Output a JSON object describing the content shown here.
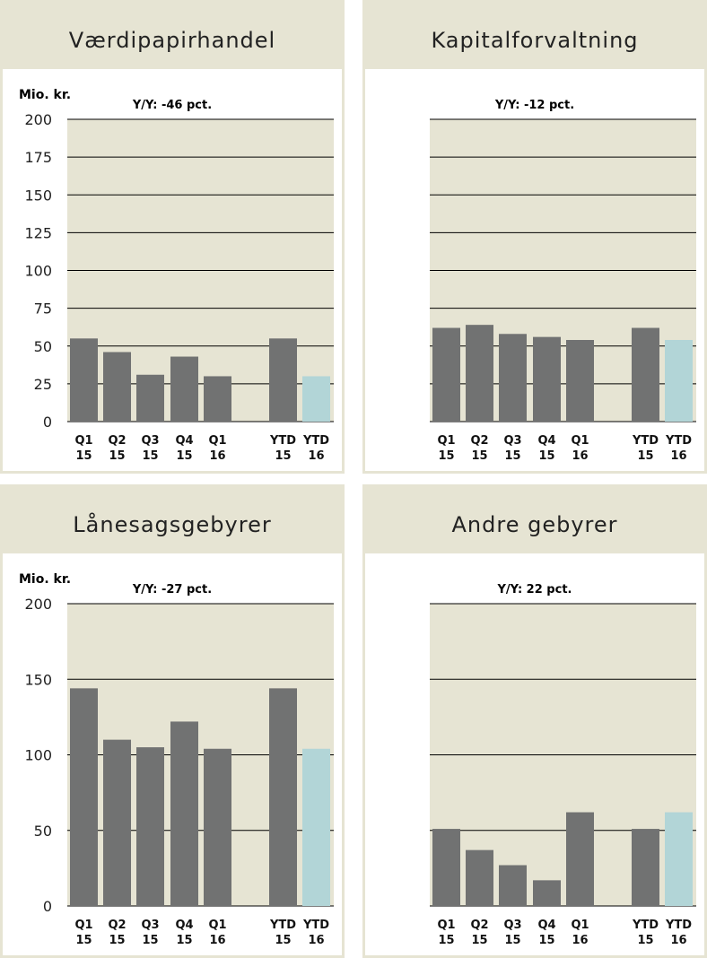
{
  "colors": {
    "plot_bg": "#e6e4d3",
    "bar": "#717272",
    "bar_ytd_current": "#b2d5d7",
    "gridline": "#000000",
    "header_bg": "#e6e4d3"
  },
  "chart_data": [
    {
      "type": "bar",
      "title": "Værdipapirhandel",
      "unit": "Mio. kr.",
      "yoy": "Y/Y: -46 pct.",
      "categories": [
        [
          "Q1",
          "15"
        ],
        [
          "Q2",
          "15"
        ],
        [
          "Q3",
          "15"
        ],
        [
          "Q4",
          "15"
        ],
        [
          "Q1",
          "16"
        ],
        [
          "YTD",
          "15"
        ],
        [
          "YTD",
          "16"
        ]
      ],
      "values": [
        55,
        46,
        31,
        43,
        30,
        55,
        30
      ],
      "ylim": [
        0,
        200
      ],
      "yticks": [
        0,
        25,
        50,
        75,
        100,
        125,
        150,
        175,
        200
      ],
      "show_y_tick_labels": true,
      "grid": true
    },
    {
      "type": "bar",
      "title": "Kapitalforvaltning",
      "unit": "",
      "yoy": "Y/Y: -12 pct.",
      "categories": [
        [
          "Q1",
          "15"
        ],
        [
          "Q2",
          "15"
        ],
        [
          "Q3",
          "15"
        ],
        [
          "Q4",
          "15"
        ],
        [
          "Q1",
          "16"
        ],
        [
          "YTD",
          "15"
        ],
        [
          "YTD",
          "16"
        ]
      ],
      "values": [
        62,
        64,
        58,
        56,
        54,
        62,
        54
      ],
      "ylim": [
        0,
        200
      ],
      "yticks": [
        0,
        25,
        50,
        75,
        100,
        125,
        150,
        175,
        200
      ],
      "show_y_tick_labels": false,
      "grid": true
    },
    {
      "type": "bar",
      "title": "Lånesagsgebyrer",
      "unit": "Mio. kr.",
      "yoy": "Y/Y: -27 pct.",
      "categories": [
        [
          "Q1",
          "15"
        ],
        [
          "Q2",
          "15"
        ],
        [
          "Q3",
          "15"
        ],
        [
          "Q4",
          "15"
        ],
        [
          "Q1",
          "16"
        ],
        [
          "YTD",
          "15"
        ],
        [
          "YTD",
          "16"
        ]
      ],
      "values": [
        144,
        110,
        105,
        122,
        104,
        144,
        104
      ],
      "ylim": [
        0,
        200
      ],
      "yticks": [
        0,
        50,
        100,
        150,
        200
      ],
      "show_y_tick_labels": true,
      "grid": true
    },
    {
      "type": "bar",
      "title": "Andre gebyrer",
      "unit": "",
      "yoy": "Y/Y: 22 pct.",
      "categories": [
        [
          "Q1",
          "15"
        ],
        [
          "Q2",
          "15"
        ],
        [
          "Q3",
          "15"
        ],
        [
          "Q4",
          "15"
        ],
        [
          "Q1",
          "16"
        ],
        [
          "YTD",
          "15"
        ],
        [
          "YTD",
          "16"
        ]
      ],
      "values": [
        51,
        37,
        27,
        17,
        62,
        51,
        62
      ],
      "ylim": [
        0,
        200
      ],
      "yticks": [
        0,
        50,
        100,
        150,
        200
      ],
      "show_y_tick_labels": false,
      "grid": true
    }
  ]
}
